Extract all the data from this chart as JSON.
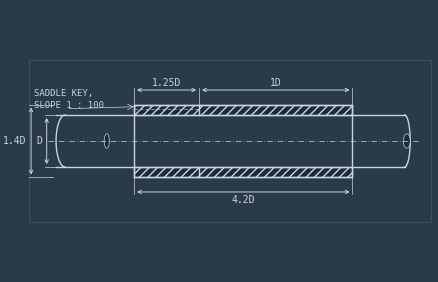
{
  "bg_color": "#2a3a4a",
  "line_color": "#c8d4de",
  "dim_color": "#c8d4de",
  "hatch_color": "#c8d4de",
  "dark_fill": "#1a2a38",
  "saddle_key_label": "SADDLE KEY,\nSLOPE 1 : 100",
  "dim_125D": "1.25D",
  "dim_1D": "1D",
  "dim_14D": "1.4D",
  "dim_D": "D",
  "dim_42D": "4.2D",
  "border_color": "#3a5060"
}
